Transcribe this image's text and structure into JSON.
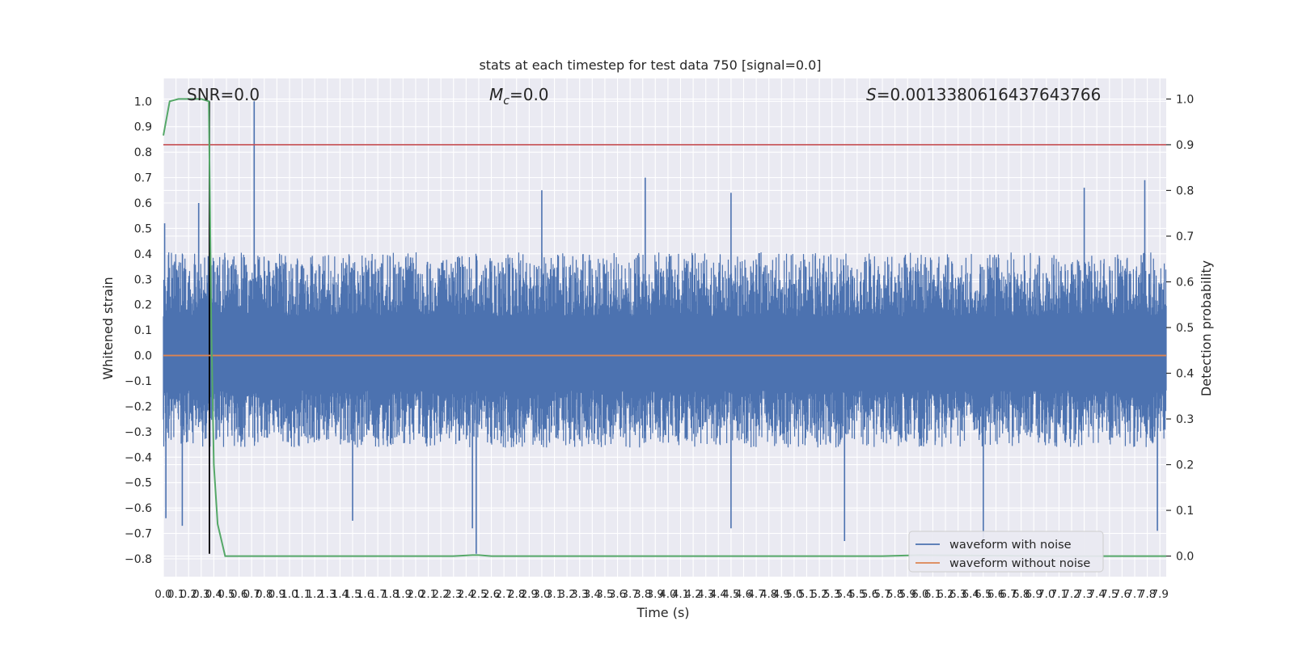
{
  "chart_data": {
    "type": "line",
    "title": "stats at each timestep for test data 750 [signal=0.0]",
    "xlabel": "Time (s)",
    "ylabel_left": "Whitened strain",
    "ylabel_right": "Detection probability",
    "xlim": [
      0,
      7.95
    ],
    "ylim_left": [
      -0.87,
      1.09
    ],
    "ylim_right": [
      -0.045,
      1.045
    ],
    "x_ticks": [
      0.0,
      0.1,
      0.2,
      0.3,
      0.4,
      0.5,
      0.6,
      0.7,
      0.8,
      0.9,
      1.0,
      1.1,
      1.2,
      1.3,
      1.4,
      1.5,
      1.6,
      1.7,
      1.8,
      1.9,
      2.0,
      2.1,
      2.2,
      2.3,
      2.4,
      2.5,
      2.6,
      2.7,
      2.8,
      2.9,
      3.0,
      3.1,
      3.2,
      3.3,
      3.4,
      3.5,
      3.6,
      3.7,
      3.8,
      3.9,
      4.0,
      4.1,
      4.2,
      4.3,
      4.4,
      4.5,
      4.6,
      4.7,
      4.8,
      4.9,
      5.0,
      5.1,
      5.2,
      5.3,
      5.4,
      5.5,
      5.6,
      5.7,
      5.8,
      5.9,
      6.0,
      6.1,
      6.2,
      6.3,
      6.4,
      6.5,
      6.6,
      6.7,
      6.8,
      6.9,
      7.0,
      7.1,
      7.2,
      7.3,
      7.4,
      7.5,
      7.6,
      7.7,
      7.8,
      7.9
    ],
    "x_tick_labels": [
      "0.0",
      "0.1",
      "0.2",
      "0.3",
      "0.4",
      "0.5",
      "0.6",
      "0.7",
      "0.8",
      "0.9",
      "1.0",
      "1.1",
      "1.2",
      "1.3",
      "1.4",
      "1.5",
      "1.6",
      "1.7",
      "1.8",
      "1.9",
      "2.0",
      "2.1",
      "2.2",
      "2.3",
      "2.4",
      "2.5",
      "2.6",
      "2.7",
      "2.8",
      "2.9",
      "3.0",
      "3.1",
      "3.2",
      "3.3",
      "3.4",
      "3.5",
      "3.6",
      "3.7",
      "3.8",
      "3.9",
      "4.0",
      "4.1",
      "4.2",
      "4.3",
      "4.4",
      "4.5",
      "4.6",
      "4.7",
      "4.8",
      "4.9",
      "5.0",
      "5.1",
      "5.2",
      "5.3",
      "5.4",
      "5.5",
      "5.6",
      "5.7",
      "5.8",
      "5.9",
      "6.0",
      "6.1",
      "6.2",
      "6.3",
      "6.4",
      "6.5",
      "6.6",
      "6.7",
      "6.8",
      "6.9",
      "7.0",
      "7.1",
      "7.2",
      "7.3",
      "7.4",
      "7.5",
      "7.6",
      "7.7",
      "7.8",
      "7.9"
    ],
    "y_ticks_left": [
      1.0,
      0.9,
      0.8,
      0.7,
      0.6,
      0.5,
      0.4,
      0.3,
      0.2,
      0.1,
      0.0,
      -0.1,
      -0.2,
      -0.3,
      -0.4,
      -0.5,
      -0.6,
      -0.7,
      -0.8
    ],
    "y_tick_labels_left": [
      "1.0",
      "0.9",
      "0.8",
      "0.7",
      "0.6",
      "0.5",
      "0.4",
      "0.3",
      "0.2",
      "0.1",
      "0.0",
      "−0.1",
      "−0.2",
      "−0.3",
      "−0.4",
      "−0.5",
      "−0.6",
      "−0.7",
      "−0.8"
    ],
    "y_ticks_right": [
      1.0,
      0.9,
      0.8,
      0.7,
      0.6,
      0.5,
      0.4,
      0.3,
      0.2,
      0.1,
      0.0
    ],
    "y_tick_labels_right": [
      "1.0",
      "0.9",
      "0.8",
      "0.7",
      "0.6",
      "0.5",
      "0.4",
      "0.3",
      "0.2",
      "0.1",
      "0.0"
    ],
    "annotations": {
      "snr": "SNR=0.0",
      "mc_symbol": "M",
      "mc_sub": "c",
      "mc_value": "=0.0",
      "s_symbol": "S",
      "s_value": "=0.0013380616437643766"
    },
    "series": [
      {
        "name": "waveform with noise",
        "axis": "left",
        "color": "#4c72b0",
        "envelope_typical": [
          -0.25,
          0.28
        ],
        "spikes": [
          {
            "x": 0.01,
            "y": 0.52
          },
          {
            "x": 0.02,
            "y": -0.64
          },
          {
            "x": 0.15,
            "y": -0.67
          },
          {
            "x": 0.28,
            "y": 0.6
          },
          {
            "x": 0.72,
            "y": 1.0
          },
          {
            "x": 1.5,
            "y": -0.65
          },
          {
            "x": 2.45,
            "y": -0.68
          },
          {
            "x": 2.48,
            "y": -0.78
          },
          {
            "x": 3.0,
            "y": 0.65
          },
          {
            "x": 3.82,
            "y": 0.7
          },
          {
            "x": 4.5,
            "y": 0.64
          },
          {
            "x": 4.5,
            "y": -0.68
          },
          {
            "x": 5.4,
            "y": -0.73
          },
          {
            "x": 6.5,
            "y": -0.76
          },
          {
            "x": 7.3,
            "y": 0.66
          },
          {
            "x": 7.78,
            "y": 0.69
          },
          {
            "x": 7.88,
            "y": -0.69
          }
        ]
      },
      {
        "name": "waveform without noise",
        "axis": "left",
        "color": "#dd8452",
        "value": 0.0
      },
      {
        "name": "detection probability",
        "axis": "right",
        "color": "#55a868",
        "x": [
          0.0,
          0.05,
          0.12,
          0.2,
          0.3,
          0.36,
          0.38,
          0.4,
          0.43,
          0.49,
          1.0,
          2.0,
          2.3,
          2.45,
          2.5,
          2.6,
          3.0,
          4.0,
          5.0,
          5.7,
          6.0,
          7.0,
          7.95
        ],
        "y": [
          0.92,
          0.995,
          1.0,
          1.0,
          1.0,
          0.995,
          0.5,
          0.2,
          0.07,
          0.0,
          0.0,
          0.0,
          0.0,
          0.002,
          0.002,
          0.0,
          0.0,
          0.0,
          0.0,
          0.0,
          0.002,
          0.0,
          0.0
        ]
      }
    ],
    "threshold_line": {
      "axis": "right",
      "y": 0.9,
      "color": "#c44e52"
    },
    "event_marker": {
      "x": 0.365,
      "y_min": -0.78,
      "y_max": 1.0,
      "color": "#000000"
    },
    "legend": {
      "location": "lower-right",
      "entries": [
        {
          "label": "waveform with noise",
          "color": "#4c72b0"
        },
        {
          "label": "waveform without noise",
          "color": "#dd8452"
        }
      ]
    },
    "grid": true,
    "background": "#eaeaf2"
  }
}
